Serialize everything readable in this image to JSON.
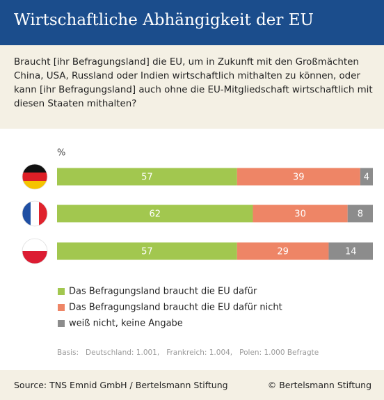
{
  "chart_data": {
    "type": "bar",
    "orientation": "horizontal",
    "stacked": true,
    "title": "Wirtschaftliche Abhängigkeit der EU",
    "subtitle": "Braucht [ihr Befragungsland] die EU, um in Zukunft mit den Großmächten China, USA, Russland oder Indien wirtschaftlich mithalten zu können, oder kann [ihr Befragungsland] auch ohne die EU-Mitgliedschaft wirtschaftlich mit diesen Staaten mithalten?",
    "unit_label": "%",
    "categories": [
      null,
      null,
      null
    ],
    "series": [
      {
        "name": "Das Befragungsland braucht die EU dafür",
        "color": "#a2c74f",
        "values": [
          57,
          62,
          57
        ]
      },
      {
        "name": "Das Befragungsland braucht die EU dafür nicht",
        "color": "#ee8566",
        "values": [
          39,
          30,
          29
        ]
      },
      {
        "name": "weiß nicht, keine Angabe",
        "color": "#8c8c8c",
        "values": [
          4,
          8,
          14
        ]
      }
    ],
    "xlim": [
      0,
      100
    ],
    "note": "Basis:   Deutschland: 1.001,   Frankreich: 1.004,   Polen: 1.000 Befragte",
    "source": "Source: TNS Emnid GmbH / Bertelsmann Stiftung",
    "copyright": "© Bertelsmann Stiftung"
  }
}
